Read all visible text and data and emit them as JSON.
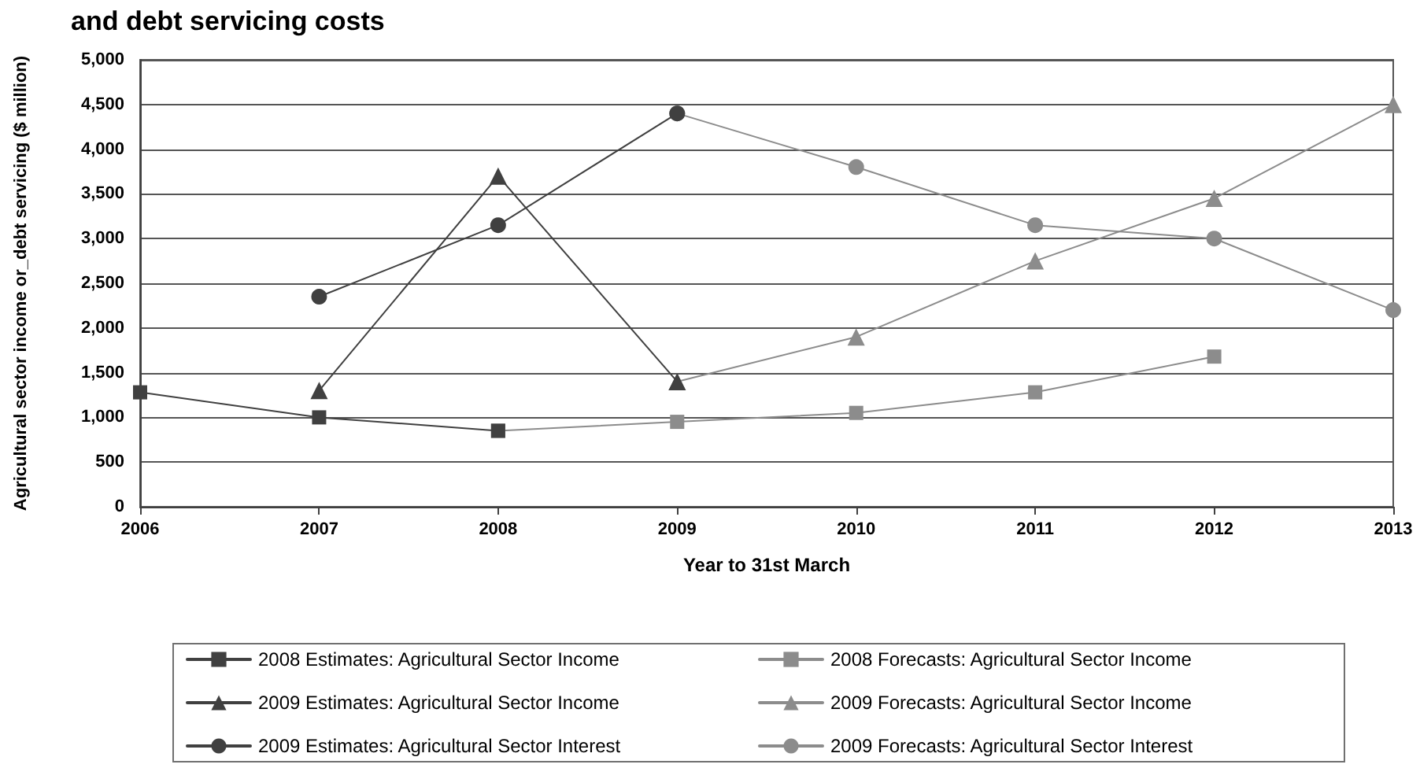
{
  "chart_data": {
    "type": "line",
    "title": "and debt servicing costs",
    "xlabel": "Year to 31st March",
    "ylabel": "Agricultural sector income or_debt servicing ($ million)",
    "xlim": [
      2006,
      2013
    ],
    "xticks": [
      2006,
      2007,
      2008,
      2009,
      2010,
      2011,
      2012,
      2013
    ],
    "ylim": [
      0,
      5000
    ],
    "yticks": [
      0,
      500,
      {
        "value": 1000,
        "label": "1,000"
      },
      {
        "value": 1500,
        "label": "1,500"
      },
      {
        "value": 2000,
        "label": "2,000"
      },
      {
        "value": 2500,
        "label": "2,500"
      },
      {
        "value": 3000,
        "label": "3,000"
      },
      {
        "value": 3500,
        "label": "3,500"
      },
      {
        "value": 4000,
        "label": "4,000"
      },
      {
        "value": 4500,
        "label": "4,500"
      },
      {
        "value": 5000,
        "label": "5,000"
      }
    ],
    "grid": "y",
    "legend": "bottom",
    "line_style": "solid",
    "series": [
      {
        "name": "2008 Estimates: Agricultural Sector Income",
        "color": "#404040",
        "marker": "square",
        "x": [
          2006,
          2007,
          2008
        ],
        "values": [
          1280,
          1000,
          850
        ]
      },
      {
        "name": "2009 Estimates: Agricultural Sector Income",
        "color": "#404040",
        "marker": "triangle",
        "x": [
          2007,
          2008,
          2009
        ],
        "values": [
          1300,
          3700,
          1400
        ]
      },
      {
        "name": "2009 Estimates: Agricultural Sector Interest",
        "color": "#404040",
        "marker": "circle",
        "x": [
          2007,
          2008,
          2009
        ],
        "values": [
          2350,
          3150,
          4400
        ]
      },
      {
        "name": "2008 Forecasts: Agricultural Sector Income",
        "color": "#8c8c8c",
        "marker": "square",
        "x": [
          2008,
          2009,
          2010,
          2011,
          2012
        ],
        "values": [
          850,
          950,
          1050,
          1280,
          1680
        ]
      },
      {
        "name": "2009 Forecasts: Agricultural Sector Income",
        "color": "#8c8c8c",
        "marker": "triangle",
        "x": [
          2009,
          2010,
          2011,
          2012,
          2013
        ],
        "values": [
          1400,
          1900,
          2750,
          3450,
          4500
        ]
      },
      {
        "name": "2009 Forecasts: Agricultural Sector Interest",
        "color": "#8c8c8c",
        "marker": "circle",
        "x": [
          2009,
          2010,
          2011,
          2012,
          2013
        ],
        "values": [
          4400,
          3800,
          3150,
          3000,
          2200
        ]
      }
    ]
  }
}
